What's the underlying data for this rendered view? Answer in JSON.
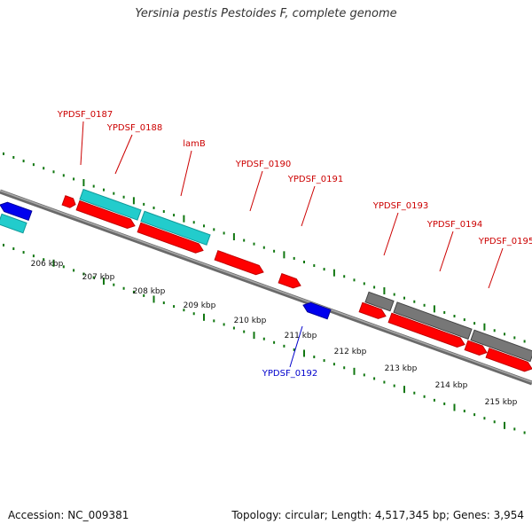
{
  "title": "Yersinia pestis Pestoides F, complete genome",
  "footer": {
    "accession": "Accession: NC_009381",
    "stats": "Topology: circular; Length: 4,517,345 bp; Genes: 3,954"
  },
  "colors": {
    "backbone": "#8a8a8a",
    "cds": "#ff0000",
    "cds_dark": "#c00000",
    "rna": "#22cccc",
    "rna_dark": "#119999",
    "other": "#777777",
    "other_dark": "#444444",
    "reverse": "#0000ee",
    "ticks": "#117711",
    "label_forward": "#cc0000",
    "label_reverse": "#0000cc"
  },
  "scale": [
    {
      "kbp": 206,
      "label": "206 kbp"
    },
    {
      "kbp": 207,
      "label": "207 kbp"
    },
    {
      "kbp": 208,
      "label": "208 kbp"
    },
    {
      "kbp": 209,
      "label": "209 kbp"
    },
    {
      "kbp": 210,
      "label": "210 kbp"
    },
    {
      "kbp": 211,
      "label": "211 kbp"
    },
    {
      "kbp": 212,
      "label": "212 kbp"
    },
    {
      "kbp": 213,
      "label": "213 kbp"
    },
    {
      "kbp": 214,
      "label": "214 kbp"
    },
    {
      "kbp": 215,
      "label": "215 kbp"
    }
  ],
  "labels": [
    {
      "text": "YPDSF_0187",
      "strand": "forward"
    },
    {
      "text": "YPDSF_0188",
      "strand": "forward"
    },
    {
      "text": "lamB",
      "strand": "forward"
    },
    {
      "text": "YPDSF_0190",
      "strand": "forward"
    },
    {
      "text": "YPDSF_0191",
      "strand": "forward"
    },
    {
      "text": "YPDSF_0193",
      "strand": "forward"
    },
    {
      "text": "YPDSF_0194",
      "strand": "forward"
    },
    {
      "text": "YPDSF_0195",
      "strand": "forward"
    },
    {
      "text": "YPDSF_0192",
      "strand": "reverse"
    }
  ]
}
